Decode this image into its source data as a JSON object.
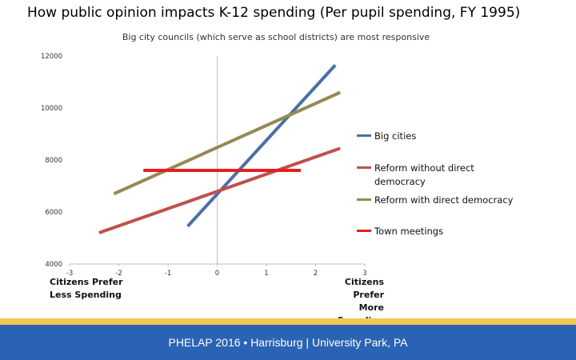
{
  "slide": {
    "title": "How public opinion impacts K-12 spending (Per pupil spending, FY 1995)",
    "footer": "PHELAP 2016 • Harrisburg | University Park, PA"
  },
  "annotations": {
    "left_line1": "Citizens Prefer",
    "left_line2": "Less Spending",
    "right_line1": "Citizens Prefer",
    "right_line2": "More Spending"
  },
  "chart_data": {
    "type": "line",
    "title": "Big city councils (which serve as school districts) are most responsive",
    "xlim": [
      -3,
      3
    ],
    "ylim": [
      4000,
      12000
    ],
    "x_ticks": [
      "-3",
      "-2",
      "-1",
      "0",
      "1",
      "2",
      "3"
    ],
    "y_ticks": [
      "4000",
      "6000",
      "8000",
      "10000",
      "12000"
    ],
    "grid": false,
    "legend_position": "right",
    "series": [
      {
        "name": "Big cities",
        "color": "#4a70a6",
        "x": [
          -0.6,
          2.4
        ],
        "y": [
          5450,
          11650
        ]
      },
      {
        "name": "Reform without direct democracy",
        "color": "#c0504d",
        "x": [
          -2.4,
          2.5
        ],
        "y": [
          5200,
          8450
        ]
      },
      {
        "name": "Reform with direct democracy",
        "color": "#948b54",
        "x": [
          -2.1,
          2.5
        ],
        "y": [
          6700,
          10600
        ]
      },
      {
        "name": "Town meetings",
        "color": "#e51f1f",
        "x": [
          -1.5,
          1.7
        ],
        "y": [
          7600,
          7600
        ]
      }
    ]
  }
}
